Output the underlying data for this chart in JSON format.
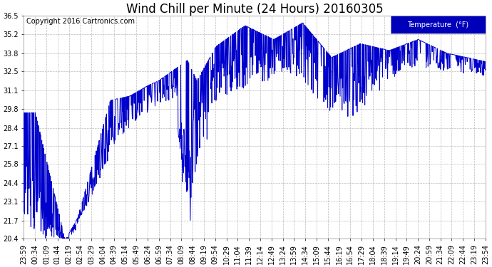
{
  "title": "Wind Chill per Minute (24 Hours) 20160305",
  "copyright_text": "Copyright 2016 Cartronics.com",
  "legend_label": "Temperature  (°F)",
  "legend_bg_color": "#0000bb",
  "legend_text_color": "#ffffff",
  "line_color": "#0000cc",
  "bg_color": "#ffffff",
  "plot_bg_color": "#ffffff",
  "grid_color": "#aaaaaa",
  "grid_style": "--",
  "ylim": [
    20.4,
    36.5
  ],
  "yticks": [
    20.4,
    21.7,
    23.1,
    24.4,
    25.8,
    27.1,
    28.4,
    29.8,
    31.1,
    32.5,
    33.8,
    35.2,
    36.5
  ],
  "xtick_labels": [
    "23:59",
    "00:34",
    "01:09",
    "01:44",
    "02:19",
    "02:54",
    "03:29",
    "04:04",
    "04:39",
    "05:14",
    "05:49",
    "06:24",
    "06:59",
    "07:34",
    "08:09",
    "08:44",
    "09:19",
    "09:54",
    "10:29",
    "11:04",
    "11:39",
    "12:14",
    "12:49",
    "13:24",
    "13:59",
    "14:34",
    "15:09",
    "15:44",
    "16:19",
    "16:54",
    "17:29",
    "18:04",
    "18:39",
    "19:14",
    "19:49",
    "20:24",
    "20:59",
    "21:34",
    "22:09",
    "22:44",
    "23:19",
    "23:54"
  ],
  "title_fontsize": 12,
  "copyright_fontsize": 7,
  "axis_fontsize": 7,
  "linewidth": 0.7
}
